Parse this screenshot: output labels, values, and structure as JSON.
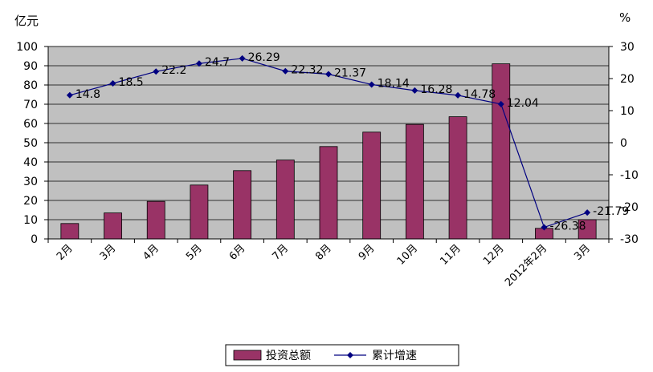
{
  "chart_data": {
    "type": "bar+line",
    "categories": [
      "2月",
      "3月",
      "4月",
      "5月",
      "6月",
      "7月",
      "8月",
      "9月",
      "10月",
      "11月",
      "12月",
      "2012年2月",
      "3月"
    ],
    "series": [
      {
        "name": "投资总额",
        "type": "bar",
        "axis": "left",
        "color": "#993366",
        "values": [
          8,
          13.5,
          19.5,
          28,
          35.5,
          41,
          48,
          55.5,
          59.5,
          63.5,
          91,
          5.5,
          10
        ]
      },
      {
        "name": "累计增速",
        "type": "line",
        "axis": "right",
        "color": "#000080",
        "values": [
          14.8,
          18.5,
          22.2,
          24.7,
          26.29,
          22.32,
          21.37,
          18.14,
          16.28,
          14.78,
          12.04,
          -26.38,
          -21.79
        ],
        "labels": [
          "14.8",
          "18.5",
          "22.2",
          "24.7",
          "26.29",
          "22.32",
          "21.37",
          "18.14",
          "16.28",
          "14.78",
          "12.04",
          "-26.38",
          "-21.79"
        ]
      }
    ],
    "y_left": {
      "unit": "亿元",
      "min": 0,
      "max": 100,
      "step": 10,
      "ticks": [
        "0",
        "10",
        "20",
        "30",
        "40",
        "50",
        "60",
        "70",
        "80",
        "90",
        "100"
      ]
    },
    "y_right": {
      "unit": "%",
      "min": -30,
      "max": 30,
      "step": 10,
      "ticks": [
        "-30",
        "-20",
        "-10",
        "0",
        "10",
        "20",
        "30"
      ]
    },
    "plot_background": "#c0c0c0",
    "grid": true,
    "legend": {
      "placement": "bottom",
      "items": [
        "投资总额",
        "累计增速"
      ]
    }
  }
}
